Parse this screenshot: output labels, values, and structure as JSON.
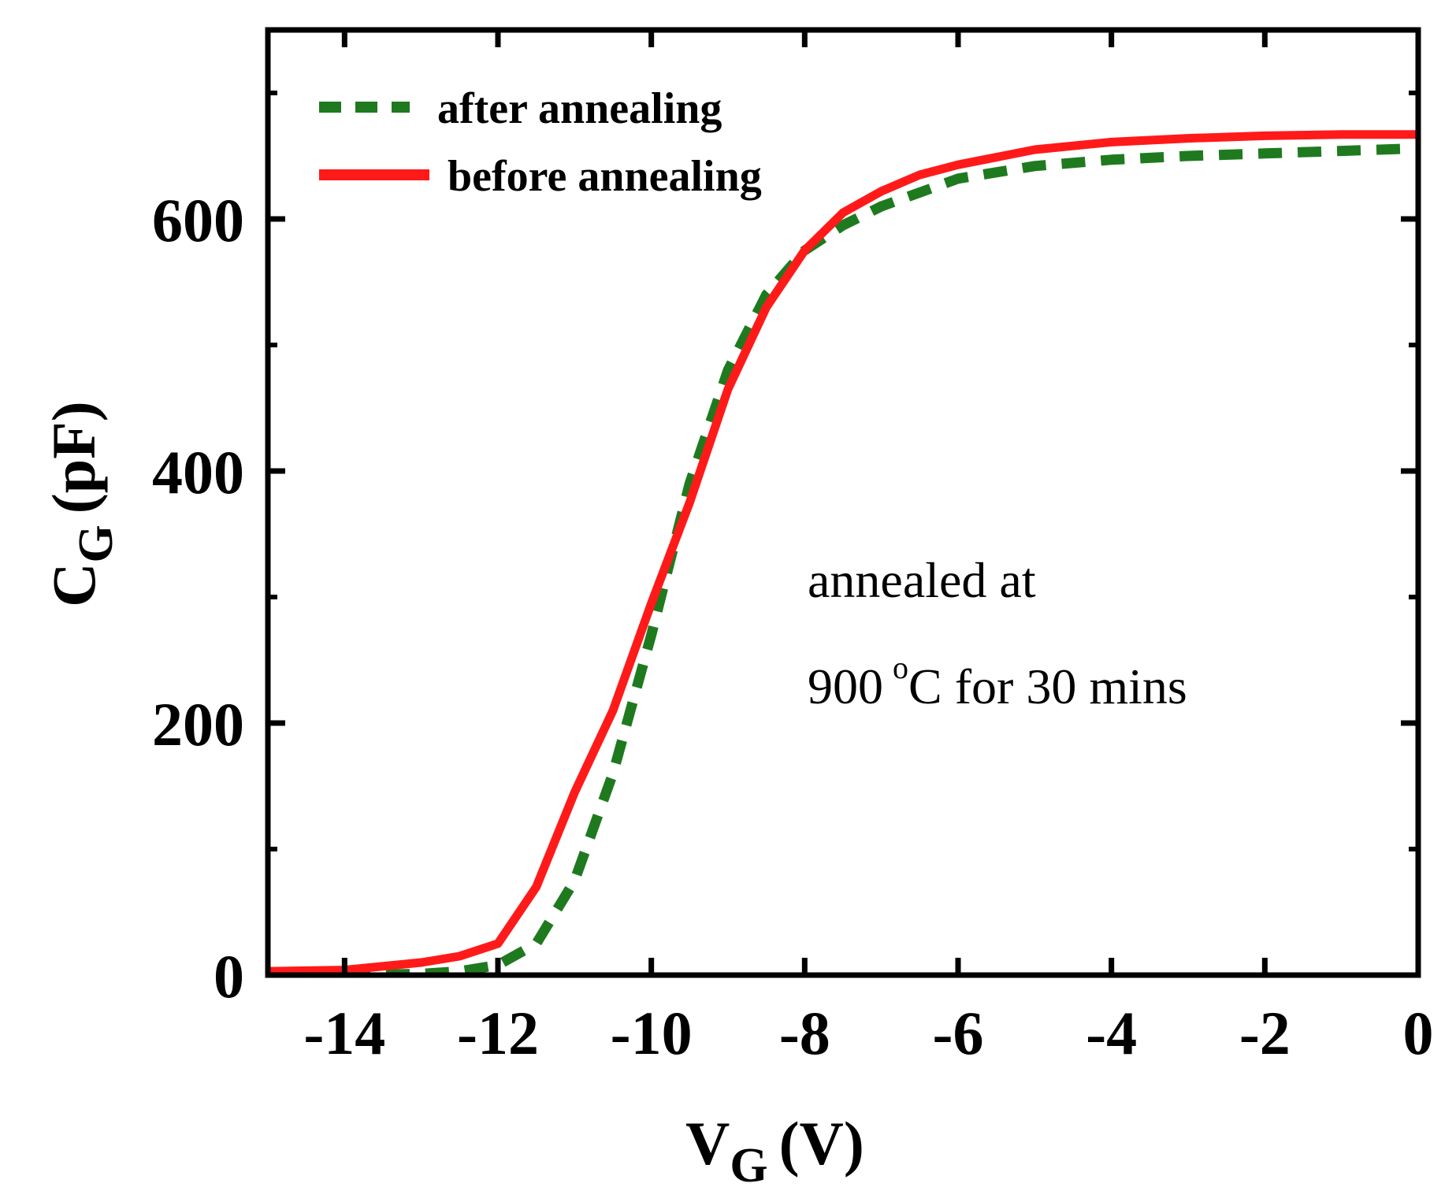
{
  "chart_data": {
    "type": "line",
    "title": "",
    "xlabel": {
      "main": "V",
      "sub": "G",
      "unit": "(V)"
    },
    "ylabel": {
      "main": "C",
      "sub": "G",
      "unit": "(pF)"
    },
    "xlim": [
      -15,
      0
    ],
    "ylim": [
      0,
      750
    ],
    "xticks": [
      -14,
      -12,
      -10,
      -8,
      -6,
      -4,
      -2,
      0
    ],
    "xtick_labels": [
      "-14",
      "-12",
      "-10",
      "-8",
      "-6",
      "-4",
      "-2",
      "0"
    ],
    "yticks": [
      0,
      200,
      400,
      600
    ],
    "ytick_labels": [
      "0",
      "200",
      "400",
      "600"
    ],
    "grid": false,
    "legend_position": "top-left",
    "series": [
      {
        "name": "after annealing",
        "color": "#1f7a1f",
        "style": "dashed",
        "x": [
          -15,
          -14,
          -13,
          -12.5,
          -12,
          -11.5,
          -11,
          -10.5,
          -10,
          -9.5,
          -9,
          -8.5,
          -8,
          -7.5,
          -7,
          -6,
          -5,
          -4,
          -3,
          -2,
          -1,
          0
        ],
        "y": [
          0,
          0,
          1,
          3,
          8,
          25,
          75,
          160,
          270,
          390,
          480,
          540,
          575,
          595,
          610,
          632,
          642,
          647,
          650,
          652,
          654,
          656
        ]
      },
      {
        "name": "before annealing",
        "color": "#ff1a1a",
        "style": "solid",
        "x": [
          -15,
          -14,
          -13,
          -12.5,
          -12,
          -11.5,
          -11,
          -10.5,
          -10,
          -9.5,
          -9,
          -8.5,
          -8,
          -7.5,
          -7,
          -6.5,
          -6,
          -5,
          -4,
          -3,
          -2,
          -1,
          0
        ],
        "y": [
          3,
          4,
          10,
          15,
          25,
          70,
          145,
          210,
          295,
          375,
          465,
          530,
          575,
          605,
          622,
          635,
          643,
          655,
          661,
          664,
          666,
          667,
          667
        ]
      }
    ],
    "annotation": {
      "line1": "annealed at",
      "line2_value": "900",
      "line2_degree": "o",
      "line2_rest": "C for 30 mins"
    }
  }
}
